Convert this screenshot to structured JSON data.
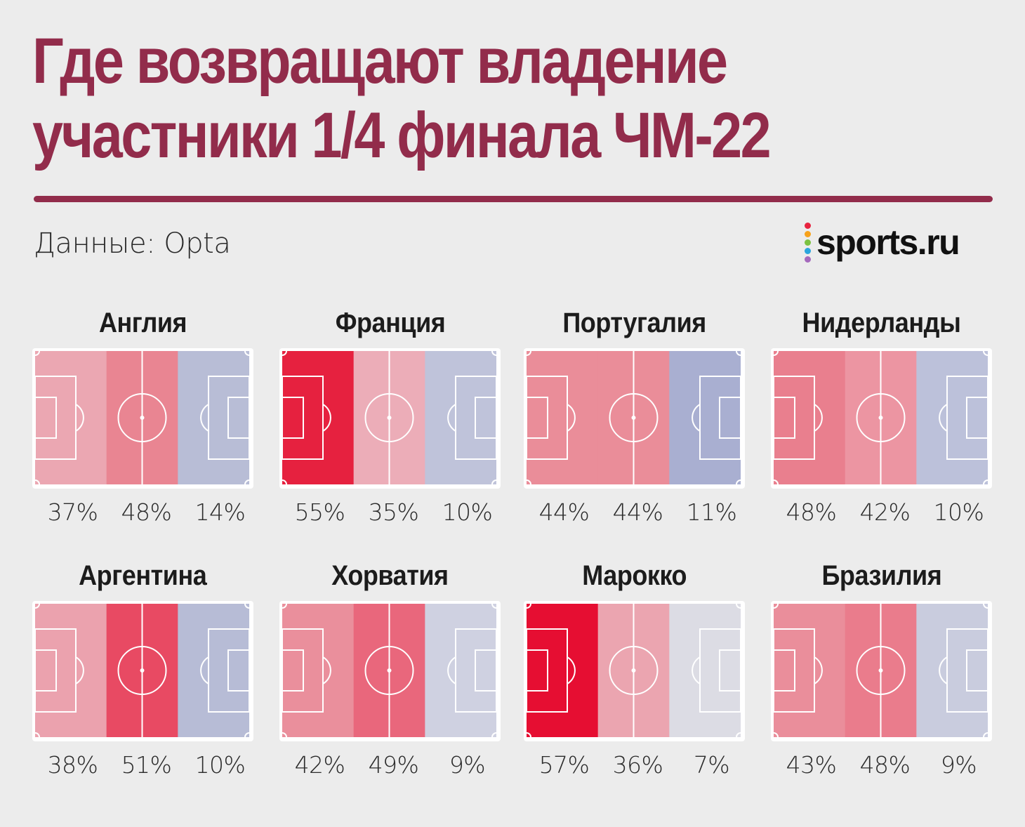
{
  "title": {
    "line1": "Где возвращают владение",
    "line2": "участники 1/4 финала ЧМ-22"
  },
  "source": "Данные: Opta",
  "logo": {
    "text": "sports.ru",
    "dot_colors": [
      "#e8233f",
      "#f7a21b",
      "#7cc242",
      "#2ba6de",
      "#a569bd"
    ]
  },
  "colors": {
    "title": "#922c4b",
    "rule": "#922c4b",
    "zone_colors_by_level": {
      "low_own_third": "#eaa9b4",
      "mid": "#ea8391",
      "high": "#e8233f",
      "opp_third_low": "#d5d7e3",
      "opp_third_mid": "#b9bed6",
      "opp_third_high": "#a5add1"
    }
  },
  "chart_data": {
    "type": "heatmap",
    "title": "Где возвращают владение участники 1/4 финала ЧМ-22",
    "zones": [
      "own third",
      "middle third",
      "final third"
    ],
    "unit": "%",
    "teams": [
      {
        "name": "Англия",
        "values": [
          37,
          48,
          14
        ],
        "labels": [
          "37%",
          "48%",
          "14%"
        ],
        "colors": [
          "#eba7b2",
          "#e98592",
          "#b8bdd6"
        ]
      },
      {
        "name": "Франция",
        "values": [
          55,
          35,
          10
        ],
        "labels": [
          "55%",
          "35%",
          "10%"
        ],
        "colors": [
          "#e6213f",
          "#ecadb8",
          "#bfc3da"
        ]
      },
      {
        "name": "Португалия",
        "values": [
          44,
          44,
          11
        ],
        "labels": [
          "44%",
          "44%",
          "11%"
        ],
        "colors": [
          "#ea8d99",
          "#ea8d99",
          "#a9afd1"
        ]
      },
      {
        "name": "Нидерланды",
        "values": [
          48,
          42,
          10
        ],
        "labels": [
          "48%",
          "42%",
          "10%"
        ],
        "colors": [
          "#e97f8e",
          "#ec95a2",
          "#bcc1da"
        ]
      },
      {
        "name": "Аргентина",
        "values": [
          38,
          51,
          10
        ],
        "labels": [
          "38%",
          "51%",
          "10%"
        ],
        "colors": [
          "#eba2ae",
          "#e84a63",
          "#b7bcd6"
        ]
      },
      {
        "name": "Хорватия",
        "values": [
          42,
          49,
          9
        ],
        "labels": [
          "42%",
          "49%",
          "9%"
        ],
        "colors": [
          "#ea8f9c",
          "#e9677c",
          "#cfd1e1"
        ]
      },
      {
        "name": "Марокко",
        "values": [
          57,
          36,
          7
        ],
        "labels": [
          "57%",
          "36%",
          "7%"
        ],
        "colors": [
          "#e60e32",
          "#eba5b0",
          "#dcdce4"
        ]
      },
      {
        "name": "Бразилия",
        "values": [
          43,
          48,
          9
        ],
        "labels": [
          "43%",
          "48%",
          "9%"
        ],
        "colors": [
          "#ea8e9b",
          "#ea7c8c",
          "#c9ccde"
        ]
      }
    ]
  }
}
